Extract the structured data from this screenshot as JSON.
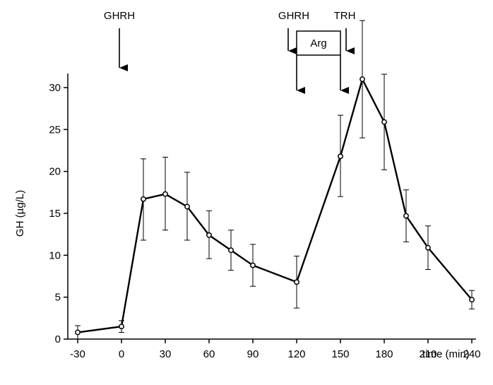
{
  "chart_data": {
    "type": "line",
    "xlabel": "time (min)",
    "ylabel": "GH (µg/L)",
    "xlim": [
      -30,
      240
    ],
    "ylim": [
      0,
      30
    ],
    "xticks": [
      -30,
      0,
      30,
      60,
      90,
      120,
      150,
      180,
      210,
      240
    ],
    "yticks": [
      0,
      5,
      10,
      15,
      20,
      25,
      30
    ],
    "grid": false,
    "series": [
      {
        "x": [
          -30,
          0,
          15,
          30,
          45,
          60,
          75,
          90,
          120,
          150,
          165,
          180,
          195,
          210,
          240
        ],
        "y": [
          0.8,
          1.5,
          16.7,
          17.3,
          15.8,
          12.4,
          10.6,
          8.8,
          6.8,
          21.8,
          31.0,
          25.9,
          14.7,
          10.9,
          4.7
        ],
        "err_low": [
          0.8,
          0.7,
          4.9,
          4.3,
          4.0,
          2.8,
          2.4,
          2.5,
          3.1,
          4.8,
          7.0,
          5.7,
          3.1,
          2.6,
          1.1
        ],
        "err_high": [
          0.8,
          0.7,
          4.8,
          4.4,
          4.1,
          2.9,
          2.4,
          2.5,
          3.1,
          4.9,
          7.0,
          5.7,
          3.1,
          2.6,
          1.1
        ]
      }
    ],
    "annotations": [
      {
        "id": "ghrh1",
        "text": "GHRH",
        "x": 0
      },
      {
        "id": "ghrh2",
        "text": "GHRH",
        "x": 120
      },
      {
        "id": "trh",
        "text": "TRH",
        "x": 150
      },
      {
        "id": "arg",
        "text": "Arg",
        "x_start": 120,
        "x_end": 150
      }
    ]
  }
}
